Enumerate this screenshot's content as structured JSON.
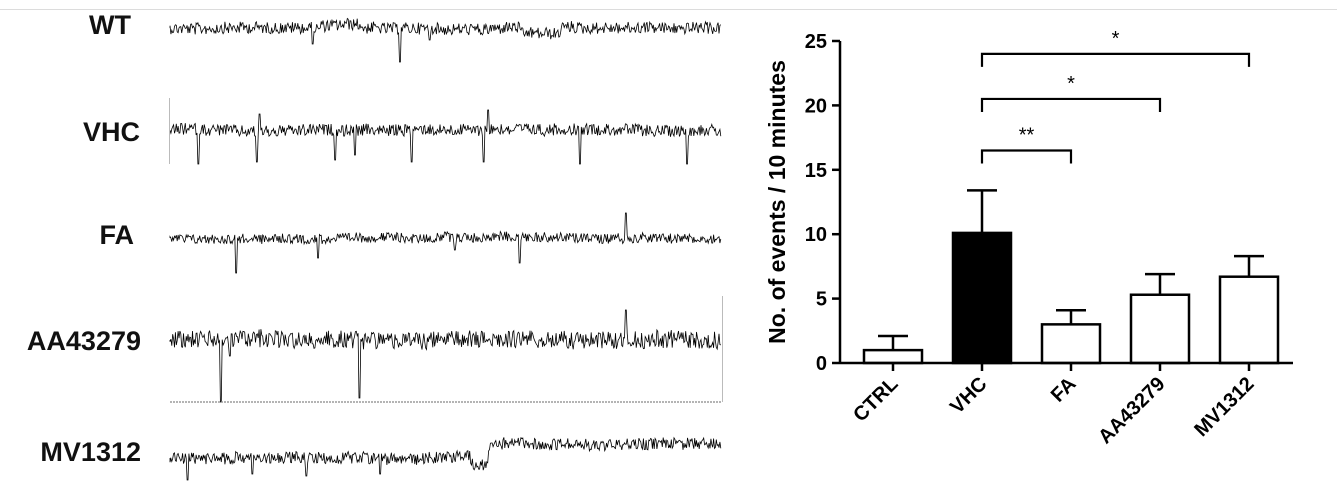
{
  "traces": {
    "labels": [
      "WT",
      "VHC",
      "FA",
      "AA43279",
      "MV1312"
    ]
  },
  "chart_data": {
    "type": "bar",
    "categories": [
      "CTRL",
      "VHC",
      "FA",
      "AA43279",
      "MV1312"
    ],
    "values": [
      1.0,
      10.1,
      3.0,
      5.3,
      6.7
    ],
    "errors": [
      1.1,
      3.3,
      1.1,
      1.6,
      1.6
    ],
    "fill_colors": [
      "#ffffff",
      "#000000",
      "#ffffff",
      "#ffffff",
      "#ffffff"
    ],
    "ylabel": "No. of events / 10 minutes",
    "xlabel": "",
    "title": "",
    "ylim": [
      0,
      25
    ],
    "yticks": [
      0,
      5,
      10,
      15,
      20,
      25
    ],
    "grid": false,
    "significance": [
      {
        "from": "VHC",
        "to": "FA",
        "label": "**",
        "y": 16.5
      },
      {
        "from": "VHC",
        "to": "AA43279",
        "label": "*",
        "y": 20.5
      },
      {
        "from": "VHC",
        "to": "MV1312",
        "label": "*",
        "y": 24.0
      }
    ]
  }
}
